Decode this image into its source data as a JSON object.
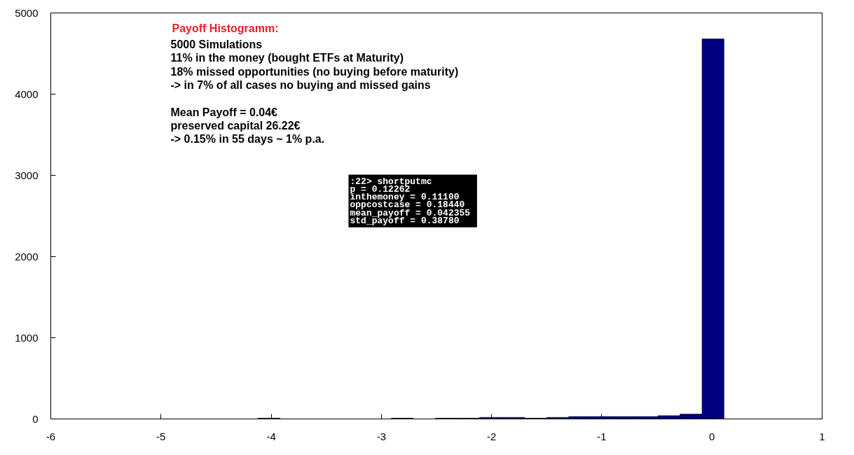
{
  "chart_data": {
    "type": "histogram",
    "title": "Payoff Histogramm:",
    "annotations": [
      "5000 Simulations\n11% in the money (bought ETFs at Maturity)\n18% missed opportunities (no buying before maturity)\n-> in 7% of all cases no buying and missed gains",
      "Mean Payoff = 0.04€\npreserved capital 26.22€\n-> 0.15% in 55 days ~ 1% p.a.",
      ":22> shortputmc\np =  0.12262\ninthemoney =  0.11100\noppcostcase =  0.18440\nmean_payoff =  0.042355\nstd_payoff =  0.38780"
    ],
    "bins": [
      -4.12,
      -3.92,
      -2.91,
      -2.71,
      -2.51,
      -2.31,
      -2.11,
      -1.9,
      -1.7,
      -1.5,
      -1.3,
      -1.1,
      -0.9,
      -0.7,
      -0.49,
      -0.29,
      -0.09,
      0.11
    ],
    "values": [
      10,
      0,
      10,
      0,
      10,
      10,
      20,
      20,
      10,
      20,
      30,
      30,
      30,
      30,
      40,
      60,
      4680
    ],
    "color": "#000080",
    "xlim": [
      -6,
      1
    ],
    "xticks": [
      -6,
      -5,
      -4,
      -3,
      -2,
      -1,
      0,
      1
    ],
    "ylim": [
      0,
      5000
    ],
    "yticks": [
      0,
      1000,
      2000,
      3000,
      4000,
      5000
    ],
    "grid": false
  }
}
